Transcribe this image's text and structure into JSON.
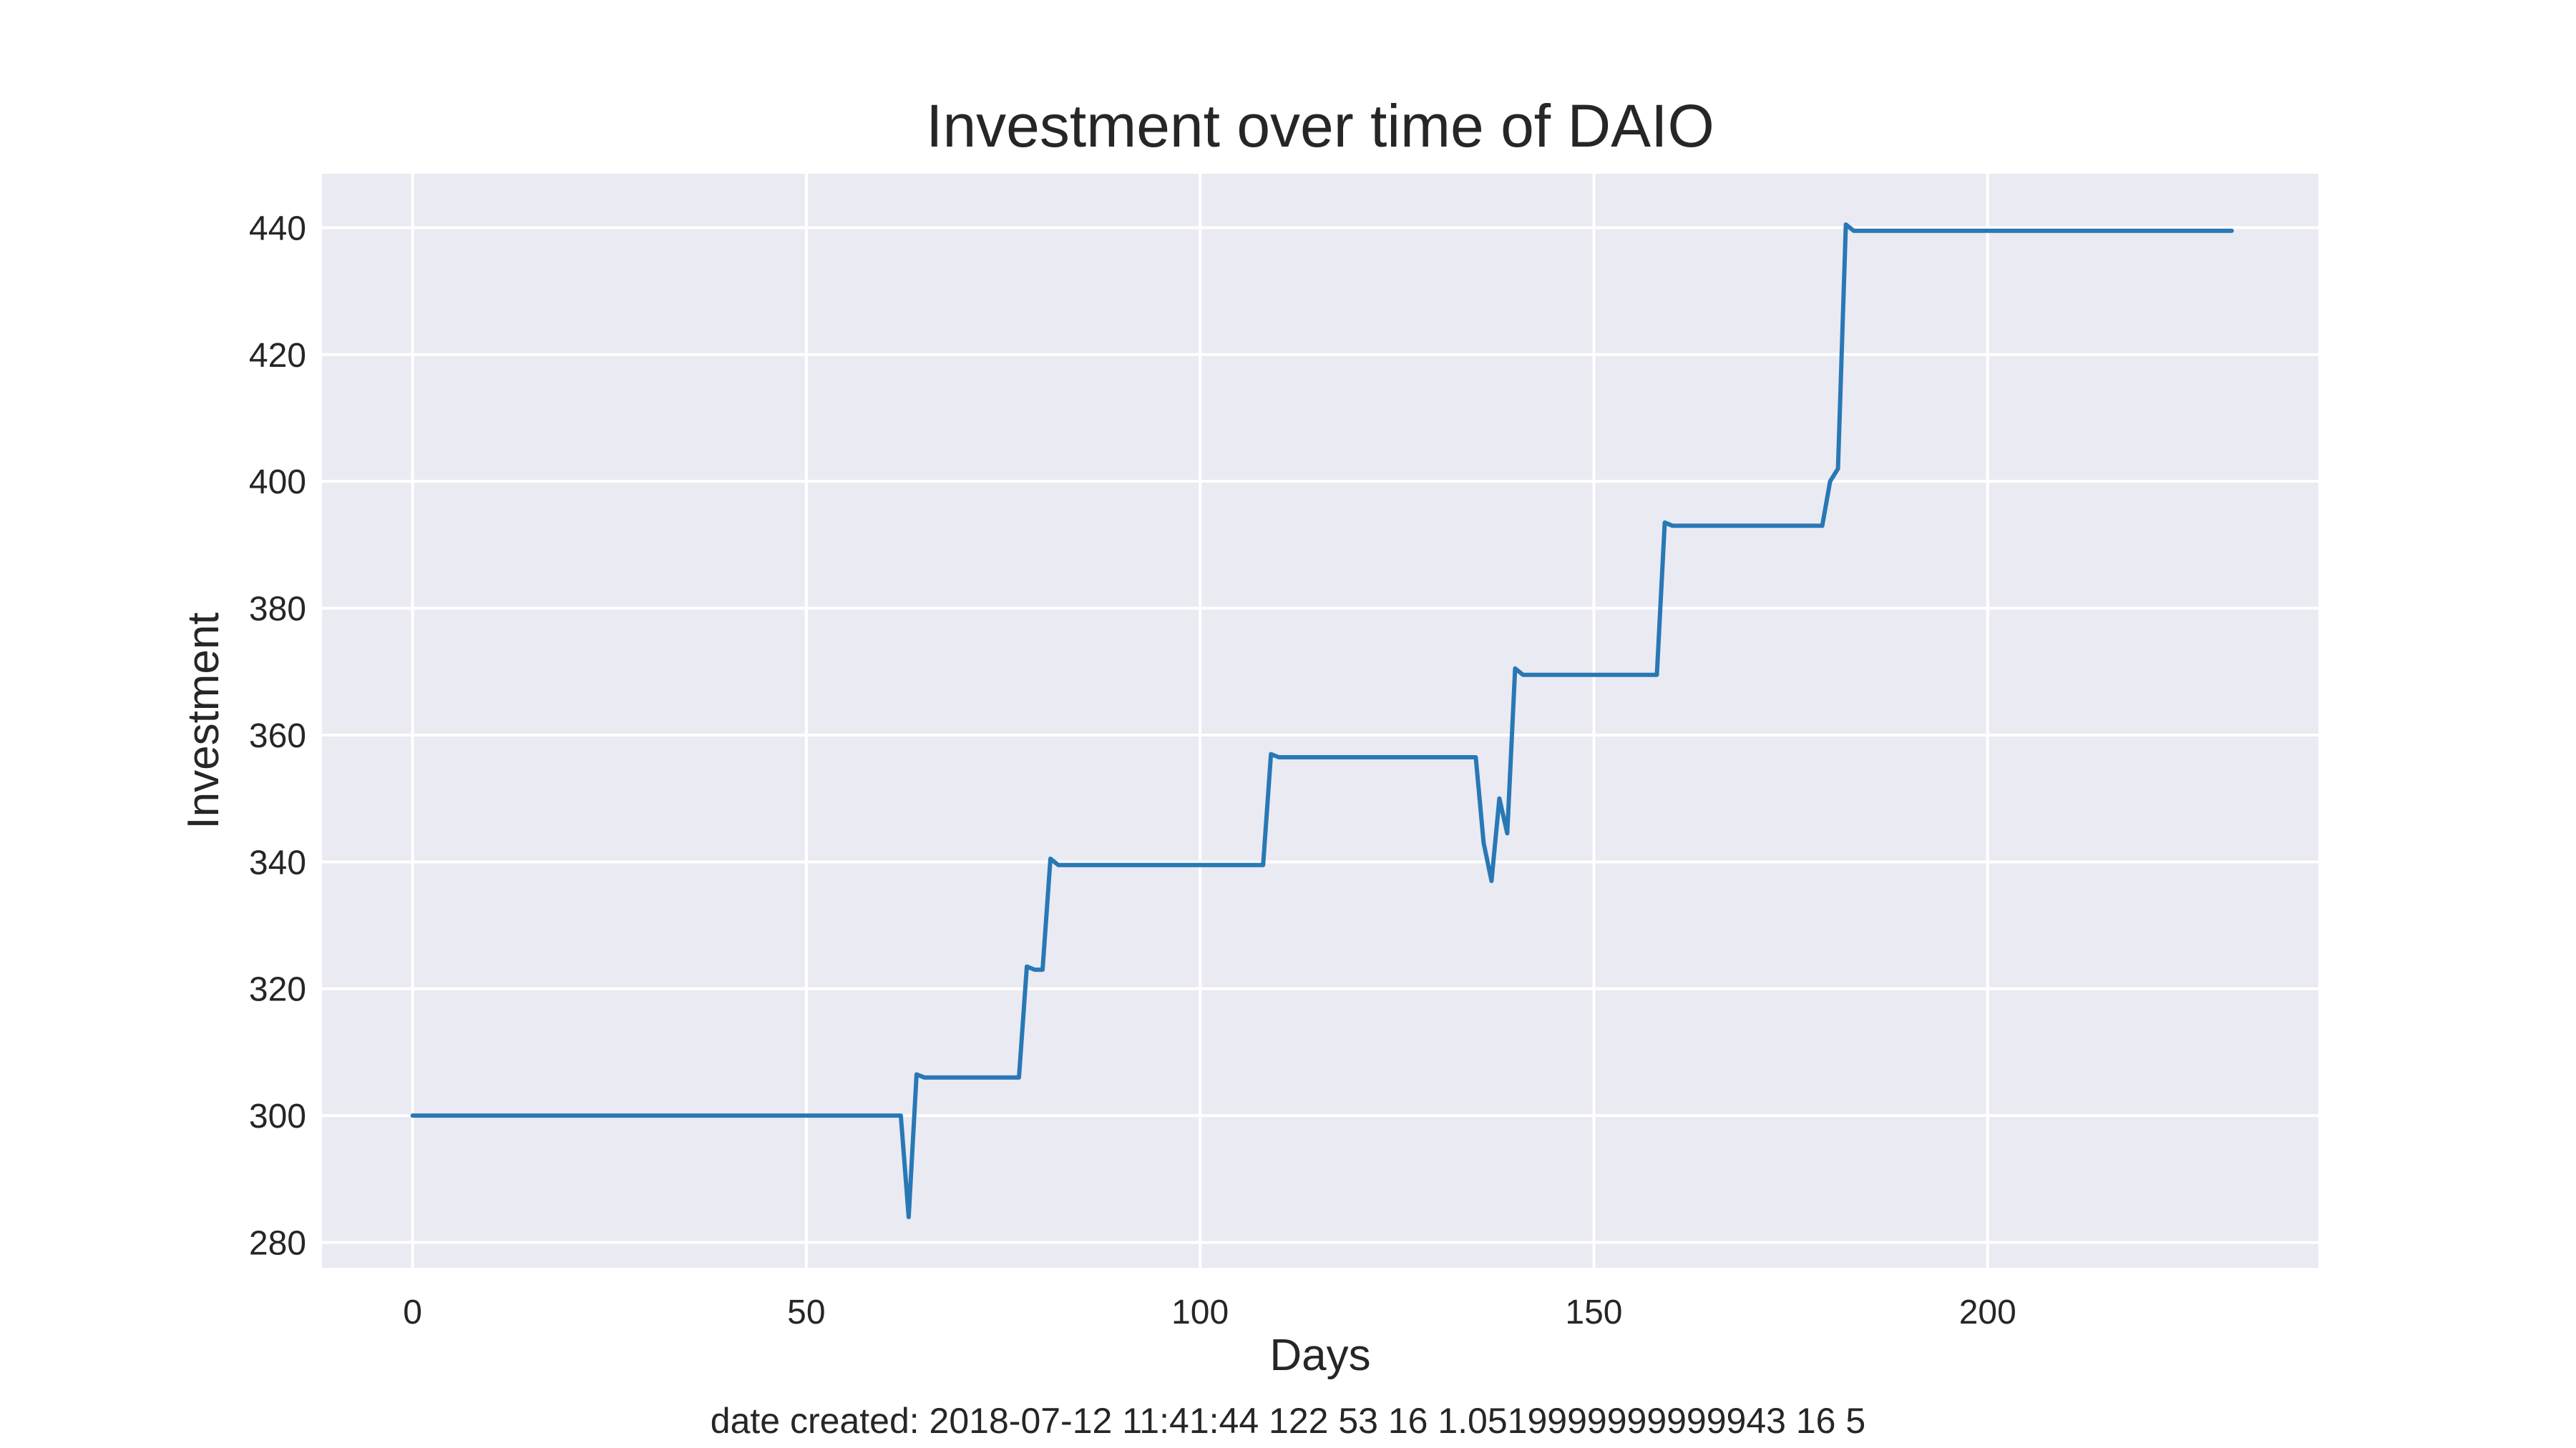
{
  "chart_data": {
    "type": "line",
    "title": "Investment over time of DAIO",
    "xlabel": "Days",
    "ylabel": "Investment",
    "footer": "date created: 2018-07-12 11:41:44 122 53 16 1.0519999999999943 16 5",
    "xlim": [
      -11.5,
      242
    ],
    "ylim": [
      276,
      448.5
    ],
    "xticks": [
      0,
      50,
      100,
      150,
      200
    ],
    "yticks": [
      280,
      300,
      320,
      340,
      360,
      380,
      400,
      420,
      440
    ],
    "grid": true,
    "colors": {
      "background": "#eaeaf2",
      "grid": "#ffffff",
      "line": "#2878b5"
    },
    "series": [
      {
        "x": [
          0,
          62,
          63,
          64,
          65,
          77,
          78,
          79,
          80,
          81,
          82,
          108,
          109,
          110,
          135,
          136,
          137,
          138,
          139,
          140,
          141,
          158,
          159,
          160,
          179,
          180,
          181,
          182,
          183,
          231
        ],
        "values": [
          300,
          300,
          284,
          306.5,
          306,
          306,
          323.5,
          323,
          323,
          340.5,
          339.5,
          339.5,
          357,
          356.5,
          356.5,
          343,
          337,
          350,
          344.5,
          370.5,
          369.5,
          369.5,
          393.5,
          393,
          393,
          400,
          402,
          440.5,
          439.5,
          439.5
        ]
      }
    ]
  }
}
